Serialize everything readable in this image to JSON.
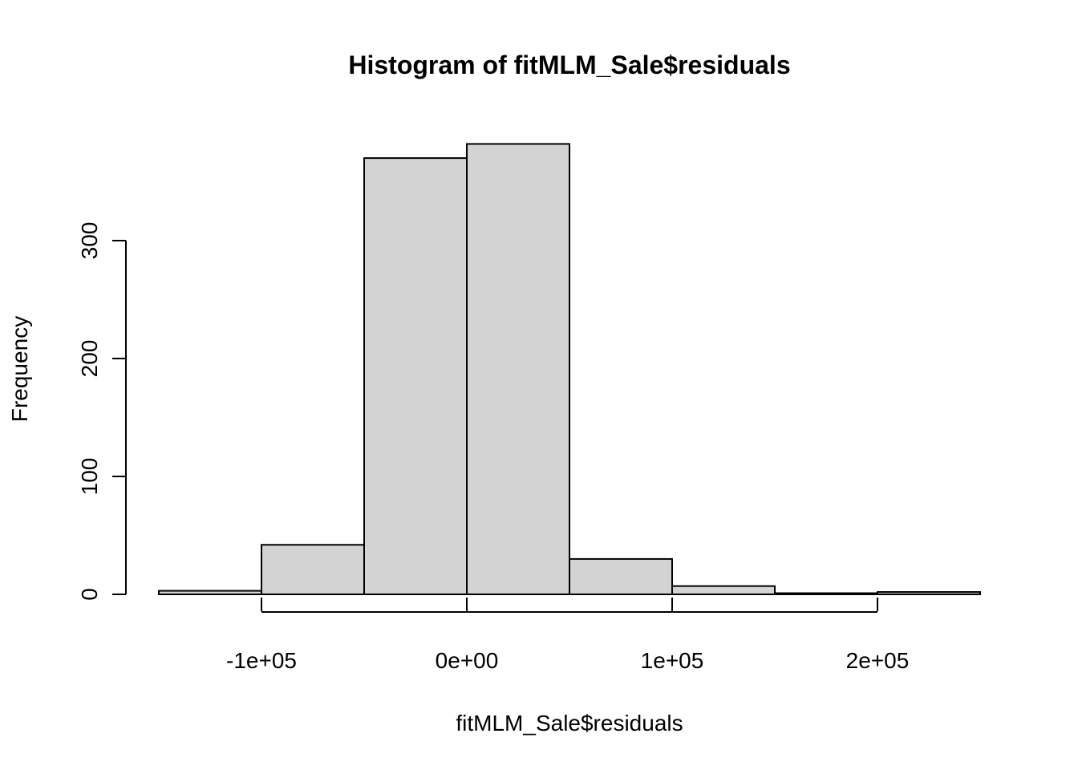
{
  "chart_data": {
    "type": "bar",
    "title": "Histogram of fitMLM_Sale$residuals",
    "xlabel": "fitMLM_Sale$residuals",
    "ylabel": "Frequency",
    "bins": [
      {
        "start": -150000,
        "end": -100000,
        "count": 3
      },
      {
        "start": -100000,
        "end": -50000,
        "count": 42
      },
      {
        "start": -50000,
        "end": 0,
        "count": 370
      },
      {
        "start": 0,
        "end": 50000,
        "count": 382
      },
      {
        "start": 50000,
        "end": 100000,
        "count": 30
      },
      {
        "start": 100000,
        "end": 150000,
        "count": 7
      },
      {
        "start": 150000,
        "end": 200000,
        "count": 1
      },
      {
        "start": 200000,
        "end": 250000,
        "count": 2
      }
    ],
    "xlim": [
      -150000,
      250000
    ],
    "ylim": [
      0,
      382
    ],
    "x_ticks": [
      {
        "value": -100000,
        "label": "-1e+05"
      },
      {
        "value": 0,
        "label": "0e+00"
      },
      {
        "value": 100000,
        "label": "1e+05"
      },
      {
        "value": 200000,
        "label": "2e+05"
      }
    ],
    "y_ticks": [
      {
        "value": 0,
        "label": "0"
      },
      {
        "value": 100,
        "label": "100"
      },
      {
        "value": 200,
        "label": "200"
      },
      {
        "value": 300,
        "label": "300"
      }
    ],
    "y_axis_range": [
      0,
      300
    ],
    "grid": false,
    "colors": {
      "bar_fill": "#d3d3d3",
      "bar_stroke": "#000000",
      "background": "#ffffff"
    }
  }
}
